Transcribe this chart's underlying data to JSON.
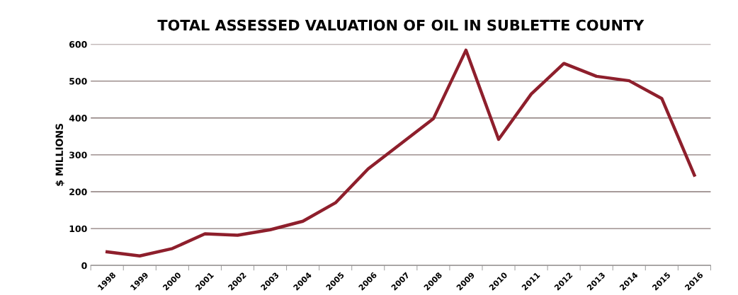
{
  "chart_data": {
    "type": "line",
    "title": "TOTAL ASSESSED VALUATION OF OIL IN SUBLETTE COUNTY",
    "ylabel": "$ MILLIONS",
    "categories": [
      "1998",
      "1999",
      "2000",
      "2001",
      "2002",
      "2003",
      "2004",
      "2005",
      "2006",
      "2007",
      "2008",
      "2009",
      "2010",
      "2011",
      "2012",
      "2013",
      "2014",
      "2015",
      "2016"
    ],
    "series": [
      {
        "color": "#8e1f2c",
        "values": [
          37,
          26,
          46,
          86,
          82,
          97,
          120,
          170,
          262,
          330,
          398,
          584,
          342,
          465,
          548,
          513,
          501,
          453,
          245
        ]
      }
    ],
    "ylim": [
      0,
      600
    ],
    "yticks": [
      0,
      100,
      200,
      300,
      400,
      500,
      600
    ],
    "grid": "y",
    "legend": false,
    "marker": "none",
    "line_style": "solid"
  }
}
